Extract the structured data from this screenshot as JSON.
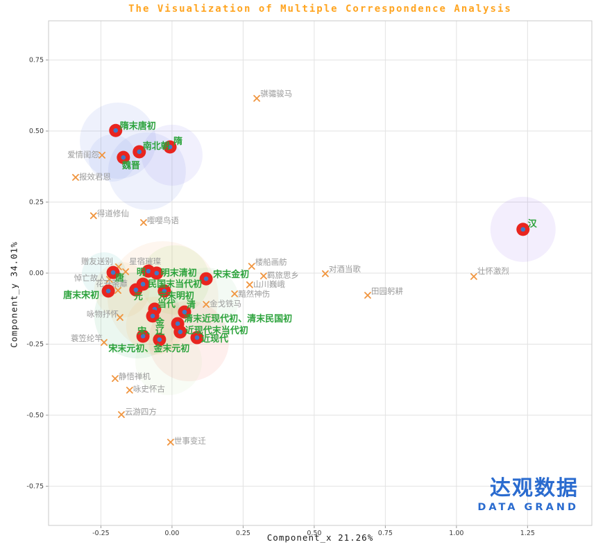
{
  "watermark": {
    "cn": "达观数据",
    "en": "DATA GRAND",
    "color": "#2a6bcf"
  },
  "chart_data": {
    "type": "scatter",
    "title": "The Visualization of Multiple Correspondence Analysis",
    "title_color": "#ffa41f",
    "xlabel": "Component_x 21.26%",
    "ylabel": "Component_y 34.01%",
    "xlim": [
      -0.434,
      1.476
    ],
    "ylim": [
      -0.888,
      0.888
    ],
    "xticks": [
      -0.25,
      0,
      0.25,
      0.5,
      0.75,
      1,
      1.25
    ],
    "yticks": [
      -0.75,
      -0.5,
      -0.25,
      0,
      0.25,
      0.5,
      0.75
    ],
    "grid": true,
    "grid_color": "#e2e2e2",
    "series": [
      {
        "name": "dynasty-periods",
        "marker": "dot",
        "marker_color": "#e8251f",
        "marker_center_color": "#3f79c8",
        "label_color": "#2ca33c",
        "points": [
          {
            "label": "隋末唐初",
            "x": -0.198,
            "y": 0.502,
            "dx": 6,
            "dy": -6,
            "anchor": "start"
          },
          {
            "label": "隋",
            "x": -0.007,
            "y": 0.444,
            "dx": 5,
            "dy": -8,
            "anchor": "start"
          },
          {
            "label": "南北朝",
            "x": -0.115,
            "y": 0.427,
            "dx": 5,
            "dy": -8,
            "anchor": "start"
          },
          {
            "label": "魏晋",
            "x": -0.171,
            "y": 0.407,
            "dx": -2,
            "dy": 12,
            "anchor": "start"
          },
          {
            "label": "汉",
            "x": 1.234,
            "y": 0.154,
            "dx": 7,
            "dy": -8,
            "anchor": "start"
          },
          {
            "label": "唐",
            "x": -0.207,
            "y": 0.002,
            "dx": 3,
            "dy": 8,
            "anchor": "start"
          },
          {
            "label": "明",
            "x": -0.083,
            "y": 0.007,
            "dx": -4,
            "dy": 2,
            "anchor": "end"
          },
          {
            "label": "明末清初",
            "x": -0.054,
            "y": 0.0,
            "dx": 6,
            "dy": 0,
            "anchor": "start"
          },
          {
            "label": "宋末金初",
            "x": 0.12,
            "y": -0.02,
            "dx": 10,
            "dy": -6,
            "anchor": "start"
          },
          {
            "label": "民国末当代初",
            "x": -0.102,
            "y": -0.039,
            "dx": 7,
            "dy": 0,
            "anchor": "start"
          },
          {
            "label": "元",
            "x": -0.127,
            "y": -0.059,
            "dx": -3,
            "dy": 10,
            "anchor": "start"
          },
          {
            "label": "元末明初",
            "x": -0.027,
            "y": -0.063,
            "dx": -9,
            "dy": 7,
            "anchor": "start"
          },
          {
            "label": "唐末宋初",
            "x": -0.224,
            "y": -0.063,
            "dx": -13,
            "dy": 6,
            "anchor": "end"
          },
          {
            "label": "当代",
            "x": -0.061,
            "y": -0.127,
            "dx": 4,
            "dy": -7,
            "anchor": "start"
          },
          {
            "label": "清",
            "x": 0.044,
            "y": -0.137,
            "dx": 3,
            "dy": -10,
            "anchor": "start"
          },
          {
            "label": "金",
            "x": -0.068,
            "y": -0.151,
            "dx": 4,
            "dy": 9,
            "anchor": "start"
          },
          {
            "label": "清末近现代初、清末民国初",
            "x": 0.02,
            "y": -0.178,
            "dx": 9,
            "dy": -7,
            "anchor": "start"
          },
          {
            "label": "宋、辽",
            "x": -0.102,
            "y": -0.222,
            "dx": -8,
            "dy": -7,
            "anchor": "start"
          },
          {
            "label": "近现代末当代初",
            "x": 0.029,
            "y": -0.207,
            "dx": 7,
            "dy": -2,
            "anchor": "start"
          },
          {
            "label": "近现代",
            "x": 0.088,
            "y": -0.227,
            "dx": 6,
            "dy": 2,
            "anchor": "start"
          },
          {
            "label": "宋末元初、金末元初",
            "x": -0.044,
            "y": -0.234,
            "dx": -15,
            "dy": 13,
            "anchor": "middle"
          }
        ]
      },
      {
        "name": "poem-themes",
        "marker": "x",
        "marker_color": "#f0953f",
        "label_color": "#9b9b9b",
        "points": [
          {
            "label": "爱情闺怨",
            "x": -0.246,
            "y": 0.415,
            "dx": -4,
            "dy": -1,
            "anchor": "end"
          },
          {
            "label": "报效君恩",
            "x": -0.339,
            "y": 0.337,
            "dx": 5,
            "dy": -1,
            "anchor": "start"
          },
          {
            "label": "骐骦骏马",
            "x": 0.298,
            "y": 0.615,
            "dx": 5,
            "dy": -7,
            "anchor": "start"
          },
          {
            "label": "得道修仙",
            "x": -0.276,
            "y": 0.202,
            "dx": 5,
            "dy": -3,
            "anchor": "start"
          },
          {
            "label": "嘤嘤鸟语",
            "x": -0.1,
            "y": 0.178,
            "dx": 5,
            "dy": -3,
            "anchor": "start"
          },
          {
            "label": "赠友送别",
            "x": -0.188,
            "y": 0.022,
            "dx": -8,
            "dy": -8,
            "anchor": "end"
          },
          {
            "label": "星宿璀璨",
            "x": -0.163,
            "y": 0.005,
            "dx": 5,
            "dy": -15,
            "anchor": "start"
          },
          {
            "label": "悼亡故人",
            "x": -0.22,
            "y": -0.022,
            "dx": -5,
            "dy": -2,
            "anchor": "end"
          },
          {
            "label": "花开荼蘼",
            "x": -0.19,
            "y": -0.061,
            "dx": -9,
            "dy": -10,
            "anchor": "middle"
          },
          {
            "label": "咏物抒怀",
            "x": -0.183,
            "y": -0.156,
            "dx": -2,
            "dy": -5,
            "anchor": "end"
          },
          {
            "label": "蓑笠纶竿",
            "x": -0.239,
            "y": -0.244,
            "dx": -2,
            "dy": -6,
            "anchor": "end"
          },
          {
            "label": "静悟禅机",
            "x": -0.2,
            "y": -0.371,
            "dx": 5,
            "dy": -3,
            "anchor": "start"
          },
          {
            "label": "咏史怀古",
            "x": -0.149,
            "y": -0.412,
            "dx": 5,
            "dy": -2,
            "anchor": "start"
          },
          {
            "label": "云游四方",
            "x": -0.178,
            "y": -0.498,
            "dx": 5,
            "dy": -4,
            "anchor": "start"
          },
          {
            "label": "世事变迁",
            "x": -0.005,
            "y": -0.595,
            "dx": 5,
            "dy": -2,
            "anchor": "start"
          },
          {
            "label": "楼船画舫",
            "x": 0.28,
            "y": 0.024,
            "dx": 5,
            "dy": -6,
            "anchor": "start"
          },
          {
            "label": "羁旅思乡",
            "x": 0.322,
            "y": -0.01,
            "dx": 5,
            "dy": -1,
            "anchor": "start"
          },
          {
            "label": "山川巍峨",
            "x": 0.273,
            "y": -0.041,
            "dx": 5,
            "dy": -1,
            "anchor": "start"
          },
          {
            "label": "黯然神伤",
            "x": 0.22,
            "y": -0.073,
            "dx": 5,
            "dy": 0,
            "anchor": "start"
          },
          {
            "label": "金戈铁马",
            "x": 0.12,
            "y": -0.11,
            "dx": 5,
            "dy": -1,
            "anchor": "start"
          },
          {
            "label": "对酒当歌",
            "x": 0.539,
            "y": -0.002,
            "dx": 5,
            "dy": -7,
            "anchor": "start"
          },
          {
            "label": "田园躬耕",
            "x": 0.688,
            "y": -0.078,
            "dx": 5,
            "dy": -6,
            "anchor": "start"
          },
          {
            "label": "壮怀激烈",
            "x": 1.061,
            "y": -0.012,
            "dx": 5,
            "dy": -8,
            "anchor": "start"
          }
        ]
      }
    ],
    "bubbles": [
      {
        "x": -0.19,
        "y": 0.466,
        "r": 55,
        "color": "rgba(120,150,235,0.13)"
      },
      {
        "x": -0.088,
        "y": 0.359,
        "r": 56,
        "color": "rgba(120,150,235,0.13)"
      },
      {
        "x": 0.0,
        "y": 0.415,
        "r": 44,
        "color": "rgba(150,140,240,0.13)"
      },
      {
        "x": -0.21,
        "y": 0.405,
        "r": 34,
        "color": "rgba(120,150,235,0.11)"
      },
      {
        "x": 1.234,
        "y": 0.154,
        "r": 47,
        "color": "rgba(165,125,240,0.13)"
      },
      {
        "x": -0.032,
        "y": -0.083,
        "r": 80,
        "color": "rgba(245,165,95,0.10)"
      },
      {
        "x": -0.122,
        "y": -0.149,
        "r": 62,
        "color": "rgba(110,200,150,0.14)"
      },
      {
        "x": 0.059,
        "y": -0.239,
        "r": 58,
        "color": "rgba(245,125,110,0.12)"
      },
      {
        "x": 0.01,
        "y": -0.024,
        "r": 50,
        "color": "rgba(175,220,130,0.15)"
      },
      {
        "x": 0.122,
        "y": -0.093,
        "r": 46,
        "color": "rgba(160,215,170,0.13)"
      },
      {
        "x": -0.059,
        "y": -0.185,
        "r": 42,
        "color": "rgba(245,200,120,0.14)"
      },
      {
        "x": -0.239,
        "y": -0.005,
        "r": 32,
        "color": "rgba(120,210,200,0.15)"
      },
      {
        "x": -0.012,
        "y": -0.312,
        "r": 48,
        "color": "rgba(200,230,180,0.13)"
      },
      {
        "x": -0.176,
        "y": -0.059,
        "r": 40,
        "color": "rgba(235,190,120,0.13)"
      }
    ]
  }
}
